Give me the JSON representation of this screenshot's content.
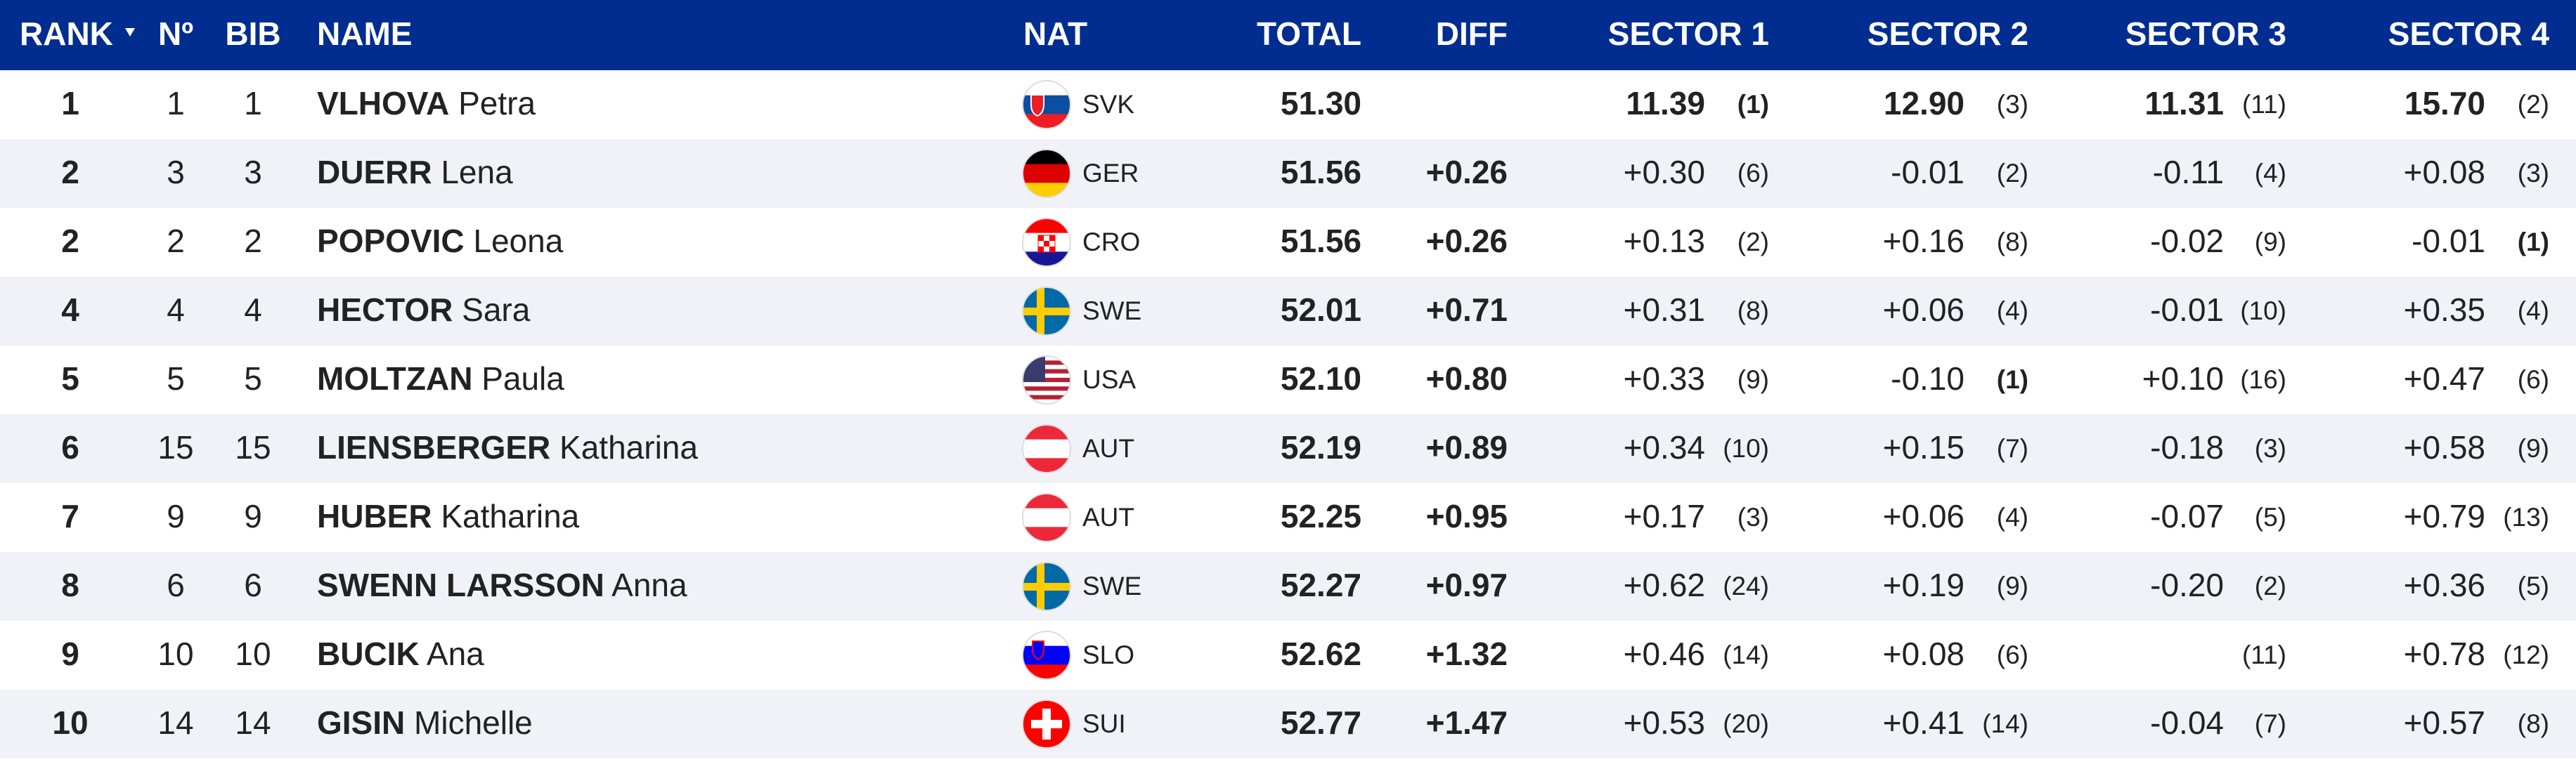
{
  "header": {
    "rank": "RANK",
    "no": "Nº",
    "bib": "BIB",
    "name": "NAME",
    "nat": "NAT",
    "total": "TOTAL",
    "diff": "DIFF",
    "sectors": [
      "SECTOR 1",
      "SECTOR 2",
      "SECTOR 3",
      "SECTOR 4"
    ]
  },
  "rows": [
    {
      "rank": "1",
      "no": "1",
      "bib": "1",
      "surname": "VLHOVA",
      "firstname": "Petra",
      "nat": "SVK",
      "total": "51.30",
      "sectors": [
        {
          "time": "11.39",
          "rank": "(1)"
        },
        {
          "time": "12.90",
          "rank": "(3)"
        },
        {
          "time": "11.31",
          "rank": "(11)"
        },
        {
          "time": "15.70",
          "rank": "(2)"
        }
      ]
    },
    {
      "rank": "2",
      "no": "3",
      "bib": "3",
      "surname": "DUERR",
      "firstname": "Lena",
      "nat": "GER",
      "total": "51.56",
      "diff": "+0.26",
      "sectors": [
        {
          "time": "+0.30",
          "rank": "(6)"
        },
        {
          "time": "-0.01",
          "rank": "(2)"
        },
        {
          "time": "-0.11",
          "rank": "(4)"
        },
        {
          "time": "+0.08",
          "rank": "(3)"
        }
      ]
    },
    {
      "rank": "2",
      "no": "2",
      "bib": "2",
      "surname": "POPOVIC",
      "firstname": "Leona",
      "nat": "CRO",
      "total": "51.56",
      "diff": "+0.26",
      "sectors": [
        {
          "time": "+0.13",
          "rank": "(2)"
        },
        {
          "time": "+0.16",
          "rank": "(8)"
        },
        {
          "time": "-0.02",
          "rank": "(9)"
        },
        {
          "time": "-0.01",
          "rank": "(1)"
        }
      ]
    },
    {
      "rank": "4",
      "no": "4",
      "bib": "4",
      "surname": "HECTOR",
      "firstname": "Sara",
      "nat": "SWE",
      "total": "52.01",
      "diff": "+0.71",
      "sectors": [
        {
          "time": "+0.31",
          "rank": "(8)"
        },
        {
          "time": "+0.06",
          "rank": "(4)"
        },
        {
          "time": "-0.01",
          "rank": "(10)"
        },
        {
          "time": "+0.35",
          "rank": "(4)"
        }
      ]
    },
    {
      "rank": "5",
      "no": "5",
      "bib": "5",
      "surname": "MOLTZAN",
      "firstname": "Paula",
      "nat": "USA",
      "total": "52.10",
      "diff": "+0.80",
      "sectors": [
        {
          "time": "+0.33",
          "rank": "(9)"
        },
        {
          "time": "-0.10",
          "rank": "(1)"
        },
        {
          "time": "+0.10",
          "rank": "(16)"
        },
        {
          "time": "+0.47",
          "rank": "(6)"
        }
      ]
    },
    {
      "rank": "6",
      "no": "15",
      "bib": "15",
      "surname": "LIENSBERGER",
      "firstname": "Katharina",
      "nat": "AUT",
      "total": "52.19",
      "diff": "+0.89",
      "sectors": [
        {
          "time": "+0.34",
          "rank": "(10)"
        },
        {
          "time": "+0.15",
          "rank": "(7)"
        },
        {
          "time": "-0.18",
          "rank": "(3)"
        },
        {
          "time": "+0.58",
          "rank": "(9)"
        }
      ]
    },
    {
      "rank": "7",
      "no": "9",
      "bib": "9",
      "surname": "HUBER",
      "firstname": "Katharina",
      "nat": "AUT",
      "total": "52.25",
      "diff": "+0.95",
      "sectors": [
        {
          "time": "+0.17",
          "rank": "(3)"
        },
        {
          "time": "+0.06",
          "rank": "(4)"
        },
        {
          "time": "-0.07",
          "rank": "(5)"
        },
        {
          "time": "+0.79",
          "rank": "(13)"
        }
      ]
    },
    {
      "rank": "8",
      "no": "6",
      "bib": "6",
      "surname": "SWENN LARSSON",
      "firstname": "Anna",
      "nat": "SWE",
      "total": "52.27",
      "diff": "+0.97",
      "sectors": [
        {
          "time": "+0.62",
          "rank": "(24)"
        },
        {
          "time": "+0.19",
          "rank": "(9)"
        },
        {
          "time": "-0.20",
          "rank": "(2)"
        },
        {
          "time": "+0.36",
          "rank": "(5)"
        }
      ]
    },
    {
      "rank": "9",
      "no": "10",
      "bib": "10",
      "surname": "BUCIK",
      "firstname": "Ana",
      "nat": "SLO",
      "total": "52.62",
      "diff": "+1.32",
      "sectors": [
        {
          "time": "+0.46",
          "rank": "(14)"
        },
        {
          "time": "+0.08",
          "rank": "(6)"
        },
        {
          "rank": "(11)"
        },
        {
          "time": "+0.78",
          "rank": "(12)"
        }
      ]
    },
    {
      "rank": "10",
      "no": "14",
      "bib": "14",
      "surname": "GISIN",
      "firstname": "Michelle",
      "nat": "SUI",
      "total": "52.77",
      "diff": "+1.47",
      "sectors": [
        {
          "time": "+0.53",
          "rank": "(20)"
        },
        {
          "time": "+0.41",
          "rank": "(14)"
        },
        {
          "time": "-0.04",
          "rank": "(7)"
        },
        {
          "time": "+0.57",
          "rank": "(8)"
        }
      ]
    }
  ]
}
